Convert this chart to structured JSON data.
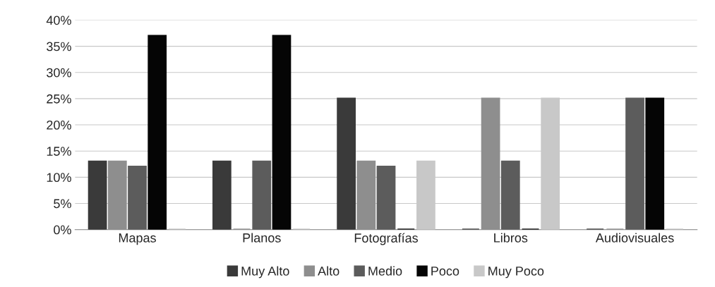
{
  "chart_data": {
    "type": "bar",
    "categories": [
      "Mapas",
      "Planos",
      "Fotografías",
      "Libros",
      "Audiovisuales"
    ],
    "series": [
      {
        "name": "Muy Alto",
        "color": "#3a3a3a",
        "values": [
          13,
          13,
          25,
          0,
          0
        ]
      },
      {
        "name": "Alto",
        "color": "#8e8e8e",
        "values": [
          13,
          0,
          13,
          25,
          0
        ]
      },
      {
        "name": "Medio",
        "color": "#5c5c5c",
        "values": [
          12,
          13,
          12,
          13,
          25
        ]
      },
      {
        "name": "Poco",
        "color": "#050505",
        "values": [
          37,
          37,
          0,
          0,
          25
        ]
      },
      {
        "name": "Muy Poco",
        "color": "#c8c8c8",
        "values": [
          0,
          0,
          13,
          25,
          0
        ]
      }
    ],
    "ylim": [
      0,
      40
    ],
    "yticks": [
      {
        "value": 0,
        "label": "0%"
      },
      {
        "value": 5,
        "label": "5%"
      },
      {
        "value": 10,
        "label": "10%"
      },
      {
        "value": 15,
        "label": "15%"
      },
      {
        "value": 20,
        "label": "20%"
      },
      {
        "value": 25,
        "label": "25%"
      },
      {
        "value": 30,
        "label": "30%"
      },
      {
        "value": 35,
        "label": "35%"
      },
      {
        "value": 40,
        "label": "40%"
      }
    ],
    "grid": "y",
    "legend": "bottom"
  }
}
